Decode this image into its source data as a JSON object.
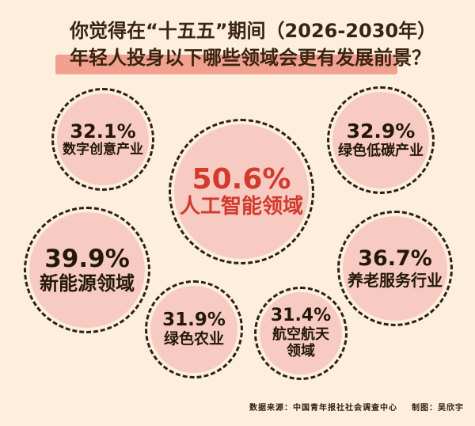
{
  "title": {
    "line1": "你觉得在“十五五”期间（2026-2030年）",
    "line2": "年轻人投身以下哪些领域会更有发展前景？"
  },
  "bubbles": {
    "ai": {
      "percent": "50.6%",
      "label": "人工智能领域"
    },
    "new_energy": {
      "percent": "39.9%",
      "label": "新能源领域"
    },
    "elderly": {
      "percent": "36.7%",
      "label": "养老服务行业"
    },
    "low_carbon": {
      "percent": "32.9%",
      "label": "绿色低碳产业"
    },
    "digital": {
      "percent": "32.1%",
      "label": "数字创意产业"
    },
    "agriculture": {
      "percent": "31.9%",
      "label": "绿色农业"
    },
    "aerospace": {
      "percent": "31.4%",
      "label_line1": "航空航天",
      "label_line2": "领域"
    }
  },
  "footer": {
    "source": "数据来源：中国青年报社社会调查中心",
    "credit": "制图：吴欣宇"
  },
  "colors": {
    "background": "#fdeedd",
    "bubble_fill": "#f7cbc1",
    "bubble_border": "#2b2118",
    "title_text": "#3a240f",
    "title_highlight": "#f2a090",
    "accent_red": "#d23a2e",
    "dark_text": "#241809"
  },
  "chart_data": {
    "type": "bubble",
    "title": "你觉得在“十五五”期间（2026-2030年）年轻人投身以下哪些领域会更有发展前景？",
    "unit": "%",
    "categories": [
      "人工智能领域",
      "新能源领域",
      "养老服务行业",
      "绿色低碳产业",
      "数字创意产业",
      "绿色农业",
      "航空航天领域"
    ],
    "values": [
      50.6,
      39.9,
      36.7,
      32.9,
      32.1,
      31.9,
      31.4
    ],
    "emphasized_category": "人工智能领域",
    "source": "中国青年报社社会调查中心",
    "credit": "吴欣宇",
    "legend": "none",
    "layout_hint": "packed dashed-border circles sized roughly by value, largest (AI) centered"
  }
}
